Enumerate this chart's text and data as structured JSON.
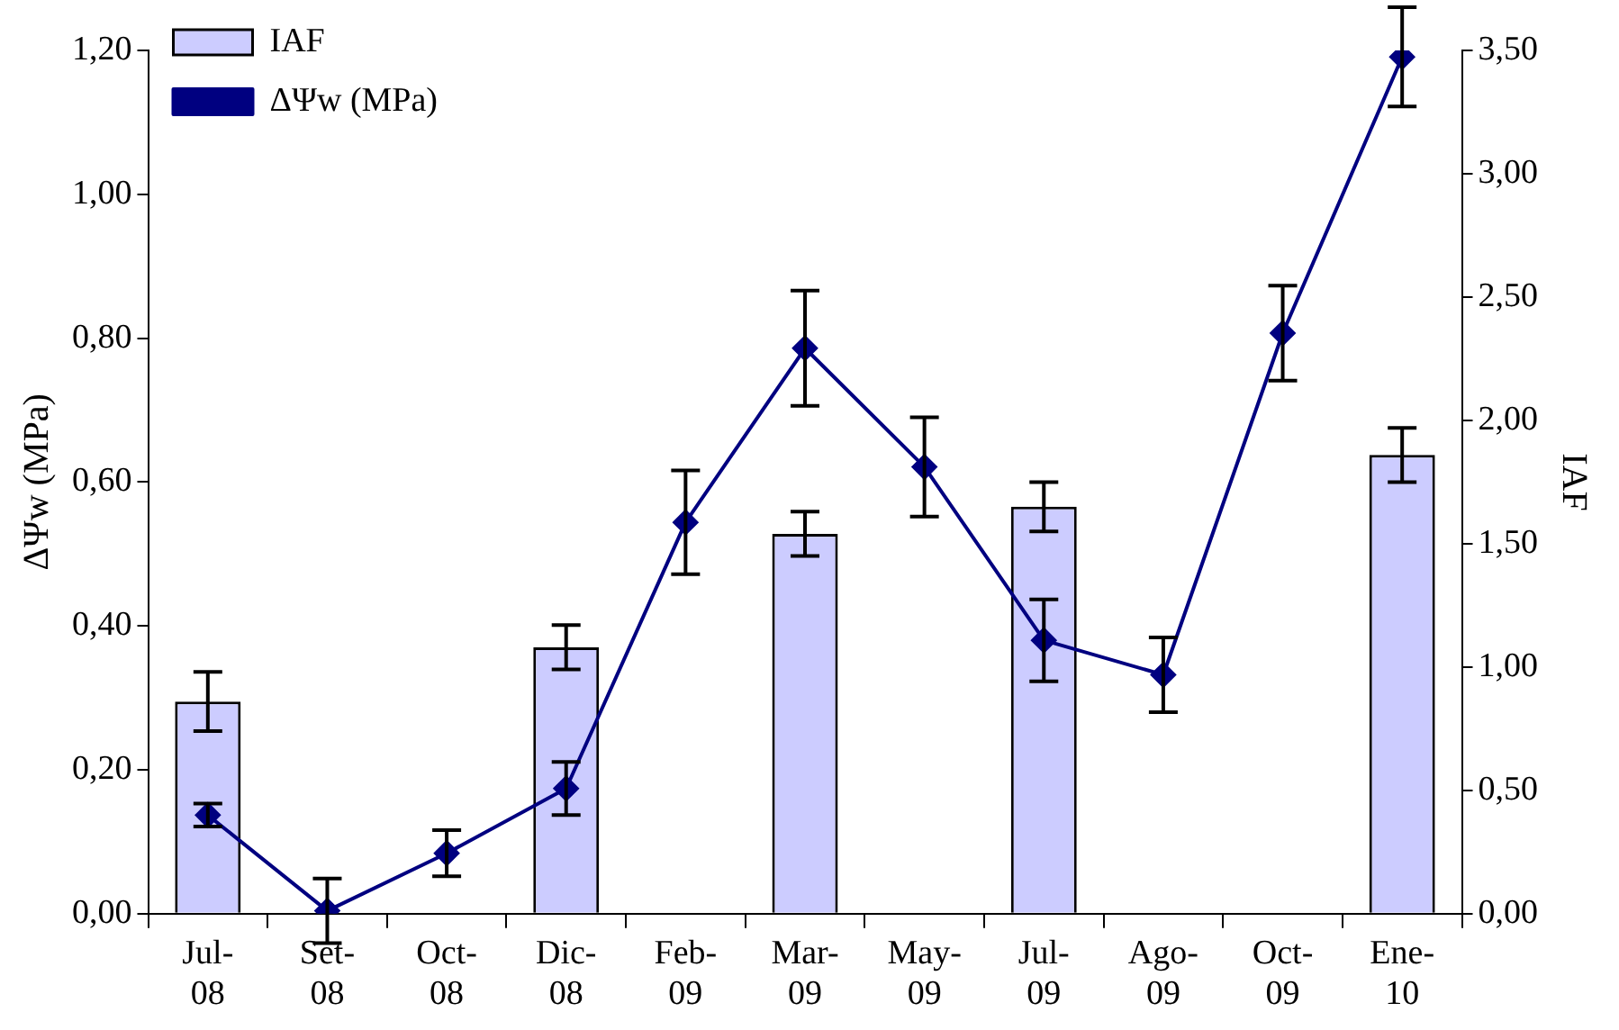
{
  "chart_data": {
    "type": "bar",
    "xlabel": null,
    "ylabel": "ΔΨw (MPa)",
    "y2label": "IAF",
    "categories": [
      "Jul-08",
      "Set-08",
      "Oct-08",
      "Dic-08",
      "Feb-09",
      "Mar-09",
      "May-09",
      "Jul-09",
      "Ago-09",
      "Oct-09",
      "Ene-10"
    ],
    "series": [
      {
        "name": "IAF",
        "axis": "y2",
        "color": "#ccccff",
        "values": [
          0.86,
          0,
          0,
          1.08,
          0,
          1.54,
          0,
          1.65,
          0,
          0,
          1.86
        ],
        "errors": [
          0.12,
          null,
          null,
          0.09,
          null,
          0.09,
          null,
          0.1,
          null,
          null,
          0.11
        ]
      },
      {
        "name": "ΔΨw (MPa)",
        "type": "line",
        "axis": "y",
        "color": "#000080",
        "values": [
          0.137,
          0.004,
          0.084,
          0.174,
          0.544,
          0.786,
          0.621,
          0.38,
          0.332,
          0.807,
          1.191
        ],
        "errors": [
          0.016,
          0.045,
          0.032,
          0.037,
          0.072,
          0.08,
          0.069,
          0.057,
          0.052,
          0.066,
          0.069
        ]
      }
    ],
    "ylim": [
      0,
      1.2
    ],
    "yticks": [
      {
        "value": 0,
        "label": "0,00"
      },
      {
        "value": 0.2,
        "label": "0,20"
      },
      {
        "value": 0.4,
        "label": "0,40"
      },
      {
        "value": 0.6,
        "label": "0,60"
      },
      {
        "value": 0.8,
        "label": "0,80"
      },
      {
        "value": 1,
        "label": "1,00"
      },
      {
        "value": 1.2,
        "label": "1,20"
      }
    ],
    "y2lim": [
      0,
      3.5
    ],
    "y2ticks": [
      {
        "value": 0,
        "label": "0,00"
      },
      {
        "value": 0.5,
        "label": "0,50"
      },
      {
        "value": 1,
        "label": "1,00"
      },
      {
        "value": 1.5,
        "label": "1,50"
      },
      {
        "value": 2,
        "label": "2,00"
      },
      {
        "value": 2.5,
        "label": "2,50"
      },
      {
        "value": 3,
        "label": "3,00"
      },
      {
        "value": 3.5,
        "label": "3,50"
      }
    ],
    "grid": false,
    "legend": "top left",
    "marker": "diamond",
    "line_style": "solid"
  }
}
